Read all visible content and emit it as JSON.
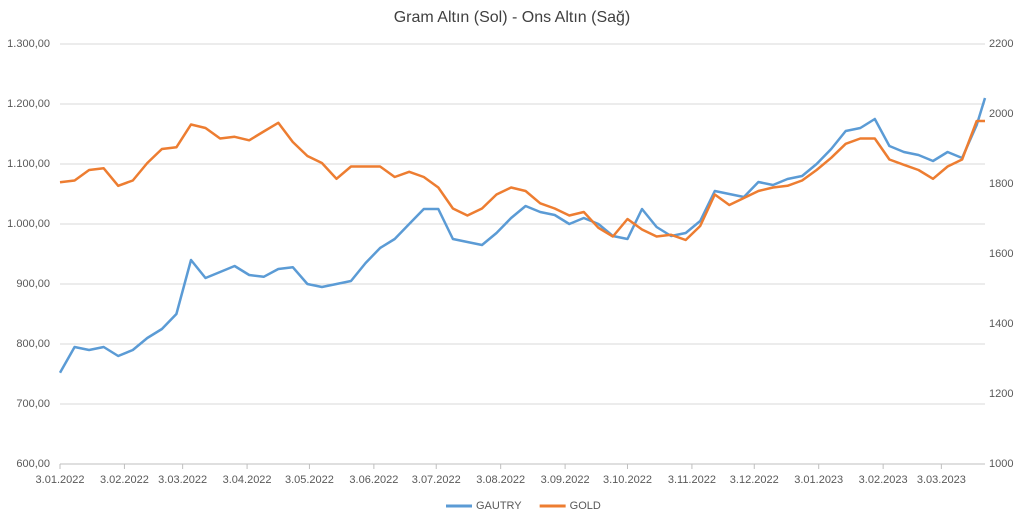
{
  "chart_data": {
    "type": "line",
    "title": "Gram Altın (Sol) - Ons Altın (Sağ)",
    "x": [
      "2022-01-03",
      "2022-01-10",
      "2022-01-17",
      "2022-01-24",
      "2022-01-31",
      "2022-02-07",
      "2022-02-14",
      "2022-02-21",
      "2022-02-28",
      "2022-03-07",
      "2022-03-14",
      "2022-03-21",
      "2022-03-28",
      "2022-04-04",
      "2022-04-11",
      "2022-04-18",
      "2022-04-25",
      "2022-05-02",
      "2022-05-09",
      "2022-05-16",
      "2022-05-23",
      "2022-05-30",
      "2022-06-06",
      "2022-06-13",
      "2022-06-20",
      "2022-06-27",
      "2022-07-04",
      "2022-07-11",
      "2022-07-18",
      "2022-07-25",
      "2022-08-01",
      "2022-08-08",
      "2022-08-15",
      "2022-08-22",
      "2022-08-29",
      "2022-09-05",
      "2022-09-12",
      "2022-09-19",
      "2022-09-26",
      "2022-10-03",
      "2022-10-10",
      "2022-10-17",
      "2022-10-24",
      "2022-10-31",
      "2022-11-07",
      "2022-11-14",
      "2022-11-21",
      "2022-11-28",
      "2022-12-05",
      "2022-12-12",
      "2022-12-19",
      "2022-12-26",
      "2023-01-02",
      "2023-01-09",
      "2023-01-16",
      "2023-01-23",
      "2023-01-30",
      "2023-02-06",
      "2023-02-13",
      "2023-02-20",
      "2023-02-27",
      "2023-03-06",
      "2023-03-13",
      "2023-03-20",
      "2023-03-24"
    ],
    "xlim": [
      "2022-01-03",
      "2023-03-24"
    ],
    "xticks": [
      {
        "value": "2022-01-03",
        "label": "3.01.2022"
      },
      {
        "value": "2022-02-03",
        "label": "3.02.2022"
      },
      {
        "value": "2022-03-03",
        "label": "3.03.2022"
      },
      {
        "value": "2022-04-03",
        "label": "3.04.2022"
      },
      {
        "value": "2022-05-03",
        "label": "3.05.2022"
      },
      {
        "value": "2022-06-03",
        "label": "3.06.2022"
      },
      {
        "value": "2022-07-03",
        "label": "3.07.2022"
      },
      {
        "value": "2022-08-03",
        "label": "3.08.2022"
      },
      {
        "value": "2022-09-03",
        "label": "3.09.2022"
      },
      {
        "value": "2022-10-03",
        "label": "3.10.2022"
      },
      {
        "value": "2022-11-03",
        "label": "3.11.2022"
      },
      {
        "value": "2022-12-03",
        "label": "3.12.2022"
      },
      {
        "value": "2023-01-03",
        "label": "3.01.2023"
      },
      {
        "value": "2023-02-03",
        "label": "3.02.2023"
      },
      {
        "value": "2023-03-03",
        "label": "3.03.2023"
      }
    ],
    "ylim": [
      600,
      1300
    ],
    "yticks": [
      {
        "value": 600,
        "label": "600,00"
      },
      {
        "value": 700,
        "label": "700,00"
      },
      {
        "value": 800,
        "label": "800,00"
      },
      {
        "value": 900,
        "label": "900,00"
      },
      {
        "value": 1000,
        "label": "1.000,00"
      },
      {
        "value": 1100,
        "label": "1.100,00"
      },
      {
        "value": 1200,
        "label": "1.200,00"
      },
      {
        "value": 1300,
        "label": "1.300,00"
      }
    ],
    "y2lim": [
      1000,
      2200
    ],
    "y2ticks": [
      1000,
      1200,
      1400,
      1600,
      1800,
      2000,
      2200
    ],
    "grid": true,
    "legend": "bottom",
    "series": [
      {
        "name": "GAUTRY",
        "color": "#5b9bd5",
        "values": [
          752,
          795,
          790,
          795,
          780,
          790,
          810,
          825,
          850,
          940,
          910,
          920,
          930,
          915,
          912,
          925,
          928,
          900,
          895,
          900,
          905,
          935,
          960,
          975,
          1000,
          1025,
          1025,
          975,
          970,
          965,
          985,
          1010,
          1030,
          1020,
          1015,
          1000,
          1010,
          1000,
          980,
          975,
          1025,
          995,
          980,
          985,
          1005,
          1055,
          1050,
          1045,
          1070,
          1065,
          1075,
          1080,
          1100,
          1125,
          1155,
          1160,
          1175,
          1130,
          1120,
          1115,
          1105,
          1120,
          1110,
          1165,
          1210
        ]
      },
      {
        "name": "GOLD",
        "color": "#ed7d31",
        "axis": "y2",
        "values": [
          1805,
          1810,
          1840,
          1845,
          1795,
          1810,
          1860,
          1900,
          1905,
          1970,
          1960,
          1930,
          1935,
          1925,
          1950,
          1975,
          1920,
          1880,
          1860,
          1815,
          1850,
          1850,
          1850,
          1820,
          1835,
          1820,
          1790,
          1730,
          1710,
          1730,
          1770,
          1790,
          1780,
          1745,
          1730,
          1710,
          1720,
          1675,
          1650,
          1700,
          1670,
          1650,
          1655,
          1640,
          1680,
          1770,
          1740,
          1760,
          1780,
          1790,
          1795,
          1810,
          1840,
          1875,
          1915,
          1930,
          1930,
          1870,
          1855,
          1840,
          1815,
          1850,
          1870,
          1980,
          1980
        ]
      }
    ]
  }
}
